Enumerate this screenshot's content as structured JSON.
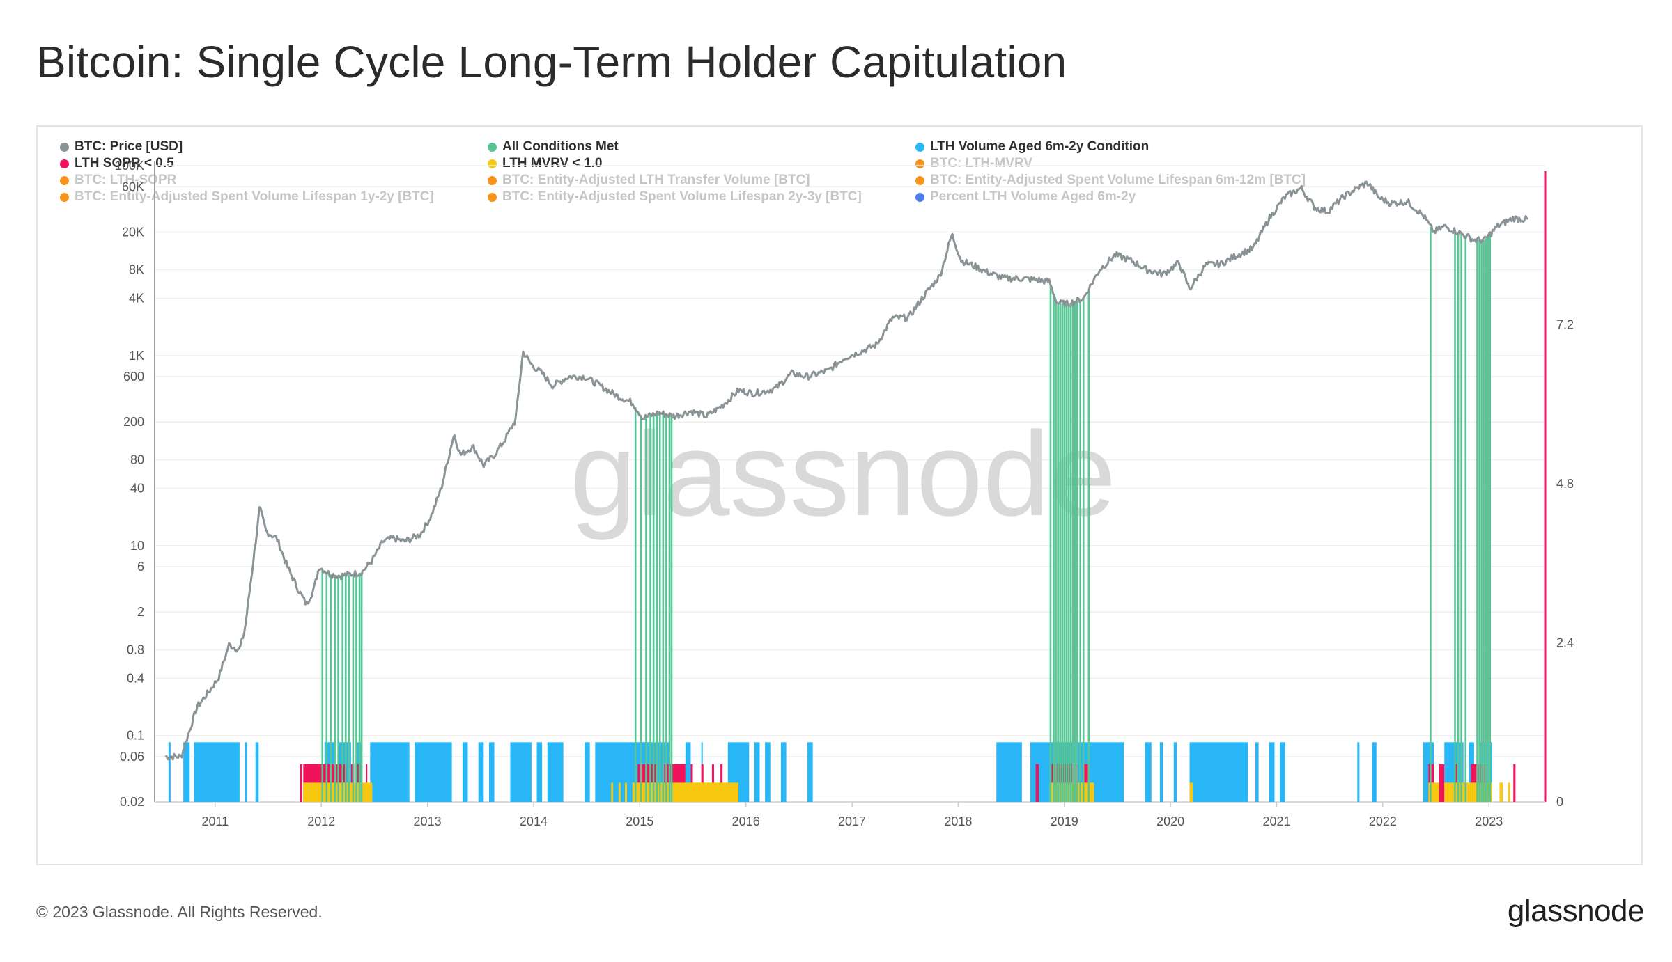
{
  "title": "Bitcoin: Single Cycle Long-Term Holder Capitulation",
  "footer": {
    "copyright": "© 2023 Glassnode. All Rights Reserved.",
    "logo": "glassnode"
  },
  "watermark": "glassnode",
  "legend": [
    {
      "label": "BTC: Price [USD]",
      "color": "#8a9396",
      "active": true
    },
    {
      "label": "All Conditions Met",
      "color": "#57c594",
      "active": true
    },
    {
      "label": "LTH Volume Aged 6m-2y Condition",
      "color": "#29b6f6",
      "active": true
    },
    {
      "label": "LTH SOPR < 0.5",
      "color": "#f0135c",
      "active": true
    },
    {
      "label": "LTH MVRV < 1.0",
      "color": "#f7c80f",
      "active": true
    },
    {
      "label": "BTC: LTH-MVRV",
      "color": "#f7931a",
      "active": false
    },
    {
      "label": "BTC: LTH-SOPR",
      "color": "#f7931a",
      "active": false
    },
    {
      "label": "BTC: Entity-Adjusted LTH Transfer Volume [BTC]",
      "color": "#f7931a",
      "active": false
    },
    {
      "label": "BTC: Entity-Adjusted Spent Volume Lifespan 6m-12m [BTC]",
      "color": "#f7931a",
      "active": false
    },
    {
      "label": "BTC: Entity-Adjusted Spent Volume Lifespan 1y-2y [BTC]",
      "color": "#f7931a",
      "active": false
    },
    {
      "label": "BTC: Entity-Adjusted Spent Volume Lifespan 2y-3y [BTC]",
      "color": "#f7931a",
      "active": false
    },
    {
      "label": "Percent LTH Volume Aged 6m-2y",
      "color": "#4a7ee8",
      "active": false
    }
  ],
  "chart_data": {
    "type": "line",
    "x_ticks": [
      "2011",
      "2012",
      "2013",
      "2014",
      "2015",
      "2016",
      "2017",
      "2018",
      "2019",
      "2020",
      "2021",
      "2022",
      "2023"
    ],
    "y_left": {
      "scale": "log",
      "range": [
        0.02,
        100000
      ],
      "ticks": [
        {
          "value": 100000,
          "label": "100K"
        },
        {
          "value": 60000,
          "label": "60K"
        },
        {
          "value": 20000,
          "label": "20K"
        },
        {
          "value": 8000,
          "label": "8K"
        },
        {
          "value": 4000,
          "label": "4K"
        },
        {
          "value": 1000,
          "label": "1K"
        },
        {
          "value": 600,
          "label": "600"
        },
        {
          "value": 200,
          "label": "200"
        },
        {
          "value": 80,
          "label": "80"
        },
        {
          "value": 40,
          "label": "40"
        },
        {
          "value": 10,
          "label": "10"
        },
        {
          "value": 6,
          "label": "6"
        },
        {
          "value": 2,
          "label": "2"
        },
        {
          "value": 0.8,
          "label": "0.8"
        },
        {
          "value": 0.4,
          "label": "0.4"
        },
        {
          "value": 0.1,
          "label": "0.1"
        },
        {
          "value": 0.06,
          "label": "0.06"
        },
        {
          "value": 0.02,
          "label": "0.02"
        }
      ]
    },
    "y_right": {
      "scale": "linear",
      "range": [
        0,
        9.6
      ],
      "ticks": [
        {
          "value": 0,
          "label": "0"
        },
        {
          "value": 2.4,
          "label": "2.4"
        },
        {
          "value": 4.8,
          "label": "4.8"
        },
        {
          "value": 7.2,
          "label": "7.2"
        }
      ],
      "color": "#e6176a"
    },
    "series": [
      {
        "name": "BTC: Price [USD]",
        "color": "#8a9396",
        "points": [
          [
            2010.55,
            0.06
          ],
          [
            2010.7,
            0.06
          ],
          [
            2010.85,
            0.2
          ],
          [
            2010.95,
            0.28
          ],
          [
            2011.05,
            0.4
          ],
          [
            2011.15,
            0.9
          ],
          [
            2011.25,
            0.8
          ],
          [
            2011.3,
            1.3
          ],
          [
            2011.38,
            7
          ],
          [
            2011.44,
            25
          ],
          [
            2011.5,
            14
          ],
          [
            2011.6,
            12
          ],
          [
            2011.7,
            6
          ],
          [
            2011.8,
            3.5
          ],
          [
            2011.88,
            2.4
          ],
          [
            2011.95,
            3.5
          ],
          [
            2012.0,
            6
          ],
          [
            2012.1,
            5
          ],
          [
            2012.2,
            4.8
          ],
          [
            2012.3,
            5
          ],
          [
            2012.4,
            5.2
          ],
          [
            2012.5,
            7
          ],
          [
            2012.6,
            11
          ],
          [
            2012.7,
            12
          ],
          [
            2012.8,
            11
          ],
          [
            2012.95,
            13
          ],
          [
            2013.05,
            20
          ],
          [
            2013.15,
            40
          ],
          [
            2013.27,
            150
          ],
          [
            2013.33,
            90
          ],
          [
            2013.45,
            110
          ],
          [
            2013.55,
            70
          ],
          [
            2013.65,
            90
          ],
          [
            2013.75,
            130
          ],
          [
            2013.85,
            210
          ],
          [
            2013.92,
            1100
          ],
          [
            2014.0,
            800
          ],
          [
            2014.1,
            650
          ],
          [
            2014.2,
            480
          ],
          [
            2014.35,
            600
          ],
          [
            2014.5,
            600
          ],
          [
            2014.65,
            480
          ],
          [
            2014.8,
            380
          ],
          [
            2014.95,
            320
          ],
          [
            2015.05,
            220
          ],
          [
            2015.2,
            250
          ],
          [
            2015.35,
            230
          ],
          [
            2015.5,
            260
          ],
          [
            2015.65,
            230
          ],
          [
            2015.8,
            300
          ],
          [
            2015.95,
            430
          ],
          [
            2016.1,
            400
          ],
          [
            2016.3,
            450
          ],
          [
            2016.45,
            650
          ],
          [
            2016.6,
            600
          ],
          [
            2016.8,
            700
          ],
          [
            2016.95,
            950
          ],
          [
            2017.1,
            1100
          ],
          [
            2017.25,
            1300
          ],
          [
            2017.4,
            2500
          ],
          [
            2017.55,
            2500
          ],
          [
            2017.7,
            4300
          ],
          [
            2017.85,
            7000
          ],
          [
            2017.96,
            19000
          ],
          [
            2018.05,
            10000
          ],
          [
            2018.15,
            9000
          ],
          [
            2018.3,
            7500
          ],
          [
            2018.45,
            6500
          ],
          [
            2018.6,
            6500
          ],
          [
            2018.75,
            6300
          ],
          [
            2018.88,
            6000
          ],
          [
            2018.95,
            3600
          ],
          [
            2019.05,
            3500
          ],
          [
            2019.2,
            4000
          ],
          [
            2019.35,
            8000
          ],
          [
            2019.5,
            11500
          ],
          [
            2019.65,
            10000
          ],
          [
            2019.8,
            8000
          ],
          [
            2019.95,
            7200
          ],
          [
            2020.1,
            9500
          ],
          [
            2020.2,
            5000
          ],
          [
            2020.35,
            9000
          ],
          [
            2020.5,
            9300
          ],
          [
            2020.65,
            11500
          ],
          [
            2020.8,
            13500
          ],
          [
            2020.95,
            28000
          ],
          [
            2021.1,
            47000
          ],
          [
            2021.25,
            58000
          ],
          [
            2021.38,
            36000
          ],
          [
            2021.5,
            33000
          ],
          [
            2021.65,
            47000
          ],
          [
            2021.8,
            60000
          ],
          [
            2021.88,
            66000
          ],
          [
            2021.98,
            46000
          ],
          [
            2022.1,
            40000
          ],
          [
            2022.25,
            42000
          ],
          [
            2022.4,
            30000
          ],
          [
            2022.5,
            20000
          ],
          [
            2022.6,
            23000
          ],
          [
            2022.75,
            19500
          ],
          [
            2022.88,
            16500
          ],
          [
            2022.98,
            16500
          ],
          [
            2023.1,
            23000
          ],
          [
            2023.25,
            28000
          ],
          [
            2023.4,
            27000
          ]
        ]
      },
      {
        "name": "All Conditions Met",
        "color": "#57c594",
        "dates": [
          2012.03,
          2012.07,
          2012.11,
          2012.15,
          2012.18,
          2012.22,
          2012.25,
          2012.28,
          2012.32,
          2012.35,
          2012.38,
          2012.4,
          2014.98,
          2015.03,
          2015.08,
          2015.12,
          2015.15,
          2015.18,
          2015.21,
          2015.24,
          2015.27,
          2015.3,
          2015.32,
          2018.89,
          2018.92,
          2018.94,
          2018.96,
          2018.98,
          2019.0,
          2019.02,
          2019.04,
          2019.06,
          2019.08,
          2019.1,
          2019.12,
          2019.14,
          2019.17,
          2019.2,
          2019.25,
          2022.47,
          2022.7,
          2022.73,
          2022.76,
          2022.8,
          2022.91,
          2022.93,
          2022.95,
          2022.97,
          2022.99,
          2023.01,
          2023.03
        ]
      },
      {
        "name": "LTH Volume Aged 6m-2y Condition",
        "color": "#29b6f6",
        "ranges": [
          [
            2010.58,
            2010.6
          ],
          [
            2010.72,
            2010.78
          ],
          [
            2010.82,
            2011.25
          ],
          [
            2011.3,
            2011.32
          ],
          [
            2011.4,
            2011.43
          ],
          [
            2012.05,
            2012.15
          ],
          [
            2012.18,
            2012.3
          ],
          [
            2012.35,
            2012.4
          ],
          [
            2012.48,
            2012.85
          ],
          [
            2012.9,
            2013.25
          ],
          [
            2013.35,
            2013.4
          ],
          [
            2013.5,
            2013.55
          ],
          [
            2013.6,
            2013.65
          ],
          [
            2013.8,
            2014.0
          ],
          [
            2014.05,
            2014.1
          ],
          [
            2014.15,
            2014.3
          ],
          [
            2014.5,
            2014.55
          ],
          [
            2014.6,
            2015.3
          ],
          [
            2015.45,
            2015.5
          ],
          [
            2015.6,
            2015.6
          ],
          [
            2015.85,
            2016.05
          ],
          [
            2016.1,
            2016.15
          ],
          [
            2016.2,
            2016.25
          ],
          [
            2016.35,
            2016.4
          ],
          [
            2016.6,
            2016.65
          ],
          [
            2018.38,
            2018.62
          ],
          [
            2018.7,
            2019.58
          ],
          [
            2019.78,
            2019.84
          ],
          [
            2019.92,
            2019.95
          ],
          [
            2020.05,
            2020.08
          ],
          [
            2020.2,
            2020.75
          ],
          [
            2020.82,
            2020.85
          ],
          [
            2020.95,
            2021.0
          ],
          [
            2021.05,
            2021.1
          ],
          [
            2021.78,
            2021.8
          ],
          [
            2021.92,
            2021.96
          ],
          [
            2022.4,
            2022.5
          ],
          [
            2022.6,
            2022.78
          ],
          [
            2022.83,
            2022.88
          ],
          [
            2022.93,
            2023.05
          ]
        ]
      },
      {
        "name": "LTH SOPR < 0.5",
        "color": "#f0135c",
        "ranges": [
          [
            2011.82,
            2011.84
          ],
          [
            2011.85,
            2012.26
          ],
          [
            2012.3,
            2012.33
          ],
          [
            2012.36,
            2012.39
          ],
          [
            2012.44,
            2012.45
          ],
          [
            2015.0,
            2015.18
          ],
          [
            2015.25,
            2015.45
          ],
          [
            2015.5,
            2015.52
          ],
          [
            2015.6,
            2015.62
          ],
          [
            2015.7,
            2015.72
          ],
          [
            2015.78,
            2015.8
          ],
          [
            2018.75,
            2018.78
          ],
          [
            2018.9,
            2019.15
          ],
          [
            2019.2,
            2019.25
          ],
          [
            2022.45,
            2022.5
          ],
          [
            2022.55,
            2022.6
          ],
          [
            2022.7,
            2022.72
          ],
          [
            2022.85,
            2023.0
          ],
          [
            2023.25,
            2023.27
          ]
        ]
      },
      {
        "name": "LTH MVRV < 1.0",
        "color": "#f7c80f",
        "ranges": [
          [
            2011.85,
            2012.5
          ],
          [
            2014.75,
            2014.77
          ],
          [
            2014.82,
            2014.84
          ],
          [
            2014.88,
            2014.9
          ],
          [
            2014.95,
            2015.95
          ],
          [
            2018.88,
            2019.3
          ],
          [
            2020.2,
            2020.23
          ],
          [
            2022.45,
            2022.55
          ],
          [
            2022.6,
            2023.05
          ],
          [
            2023.12,
            2023.15
          ],
          [
            2023.2,
            2023.22
          ]
        ]
      }
    ]
  }
}
